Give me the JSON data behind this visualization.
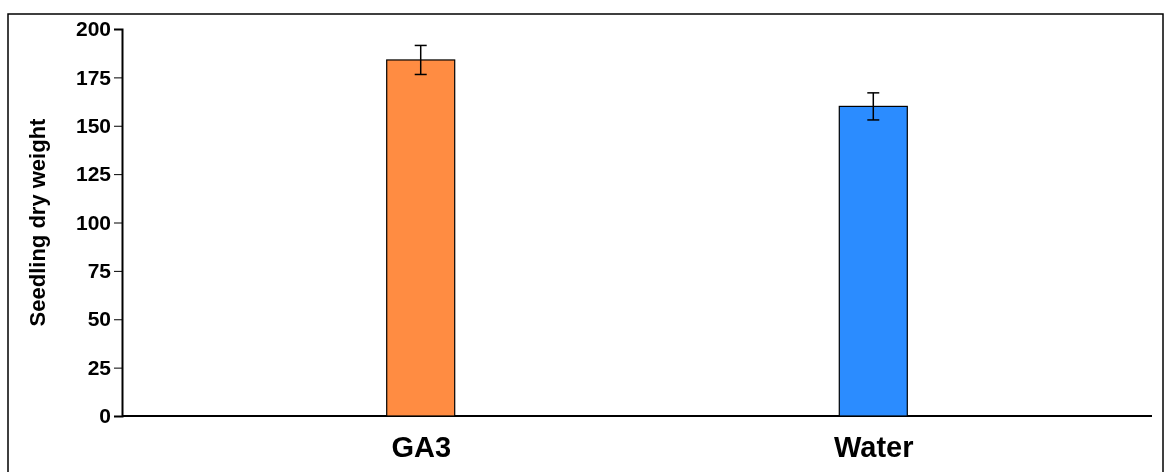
{
  "chart_data": {
    "type": "bar",
    "ylabel": "Seedling dry weight",
    "categories": [
      "GA3",
      "Water"
    ],
    "values": [
      184,
      160
    ],
    "colors": [
      "#ff8c42",
      "#2b8cff"
    ],
    "errors": [
      7.5,
      7
    ],
    "ylim": [
      0,
      200
    ],
    "yticks": [
      0,
      25,
      50,
      75,
      100,
      125,
      150,
      175,
      200
    ],
    "grid": false
  }
}
